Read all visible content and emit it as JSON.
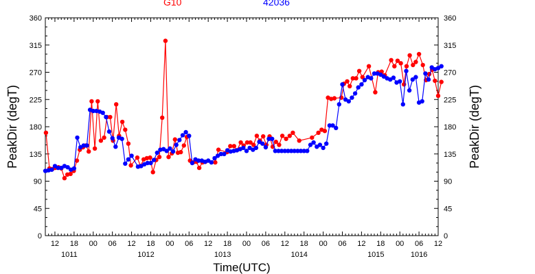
{
  "chart_data": {
    "type": "line",
    "title": "",
    "legend": [
      "G10",
      "42036"
    ],
    "xlabel": "Time(UTC)",
    "ylabel_left": "PeakDir (degT)",
    "ylabel_right": "PeakDir (degT)",
    "ylim": [
      0,
      360
    ],
    "yticks": [
      0,
      45,
      90,
      135,
      180,
      225,
      270,
      315,
      360
    ],
    "xlim_hours": [
      9,
      132
    ],
    "xtick_hour_labels": [
      "12",
      "18",
      "00",
      "06",
      "12",
      "18",
      "00",
      "06",
      "12",
      "18",
      "00",
      "06",
      "12",
      "18",
      "00",
      "06",
      "12",
      "18",
      "00",
      "06",
      "12"
    ],
    "xtick_hours": [
      12,
      18,
      24,
      30,
      36,
      42,
      48,
      54,
      60,
      66,
      72,
      78,
      84,
      90,
      96,
      102,
      108,
      114,
      120,
      126,
      132
    ],
    "day_labels": [
      "1011",
      "1012",
      "1013",
      "1014",
      "1015",
      "1016"
    ],
    "day_label_hours": [
      16.5,
      40.5,
      64.5,
      88.5,
      112.5,
      126
    ],
    "series": [
      {
        "name": "G10",
        "color": "#ff0000",
        "x": [
          9.2,
          10.3,
          11.2,
          12.1,
          13.1,
          14.0,
          15.0,
          15.9,
          16.9,
          17.9,
          18.9,
          19.8,
          20.8,
          21.7,
          22.6,
          23.5,
          24.5,
          25.4,
          26.4,
          27.4,
          28.3,
          29.3,
          30.2,
          31.2,
          32.1,
          33.1,
          34.0,
          35.0,
          35.8,
          37.8,
          38.8,
          39.8,
          40.8,
          41.8,
          42.7,
          43.7,
          44.7,
          45.6,
          46.6,
          47.6,
          48.6,
          49.6,
          50.5,
          51.4,
          52.4,
          53.3,
          54.3,
          55.3,
          56.3,
          57.2,
          58.2,
          59.1,
          62.2,
          63.2,
          65.9,
          66.9,
          68.1,
          69.0,
          70.2,
          71.1,
          72.2,
          73.2,
          74.2,
          75.2,
          76.2,
          77.2,
          78.2,
          79.2,
          80.2,
          81.2,
          82.2,
          83.2,
          84.4,
          85.5,
          86.5,
          88.5,
          92.5,
          94.5,
          95.5,
          96.5,
          97.5,
          98.5,
          99.5,
          101.7,
          102.5,
          103.5,
          104.3,
          105.3,
          106.3,
          107.3,
          108.3,
          110.3,
          112.3,
          113.2,
          114.3,
          115.3,
          117.3,
          118.3,
          119.3,
          120.3,
          121.3,
          122.1,
          123.1,
          124.1,
          125.0,
          126.0,
          127.2,
          128.2,
          129.2,
          130.1,
          131.0,
          132.0,
          133.0
        ],
        "y": [
          170,
          111,
          110,
          112,
          113,
          111,
          95,
          101,
          102,
          107,
          124,
          142,
          146,
          149,
          139,
          222,
          144,
          222,
          157,
          162,
          196,
          196,
          157,
          217,
          165,
          188,
          175,
          152,
          116,
          129,
          115,
          126,
          128,
          129,
          105,
          125,
          130,
          195,
          322,
          130,
          136,
          159,
          137,
          138,
          149,
          163,
          124,
          121,
          122,
          112,
          121,
          122,
          121,
          142,
          138,
          148,
          148,
          141,
          154,
          149,
          154,
          154,
          150,
          165,
          157,
          164,
          150,
          164,
          147,
          155,
          150,
          165,
          160,
          165,
          170,
          157,
          162,
          170,
          175,
          173,
          228,
          226,
          227,
          228,
          251,
          255,
          247,
          260,
          260,
          272,
          262,
          280,
          237,
          270,
          271,
          265,
          290,
          280,
          289,
          285,
          250,
          280,
          298,
          282,
          287,
          300,
          282,
          257,
          267,
          274,
          256,
          231,
          254
        ],
        "y_note": "approx"
      },
      {
        "name": "42036",
        "color": "#0000ff",
        "x": [
          9.0,
          10.0,
          11.0,
          12.0,
          13.0,
          14.0,
          15.0,
          16.0,
          17.0,
          18.0,
          19.0,
          20.0,
          21.0,
          22.0,
          23.0,
          24.0,
          25.0,
          26.0,
          27.0,
          28.0,
          29.0,
          30.0,
          31.0,
          32.0,
          33.0,
          34.0,
          35.0,
          36.0,
          38.0,
          39.0,
          40.0,
          41.0,
          42.0,
          43.0,
          44.0,
          45.0,
          46.0,
          47.0,
          48.0,
          49.0,
          50.0,
          51.0,
          52.0,
          53.0,
          54.0,
          55.0,
          56.0,
          57.0,
          58.0,
          59.0,
          60.0,
          61.0,
          62.0,
          63.0,
          64.0,
          65.0,
          66.0,
          67.0,
          68.0,
          69.0,
          70.0,
          71.0,
          72.0,
          73.0,
          74.0,
          75.0,
          76.0,
          77.0,
          78.0,
          79.0,
          80.0,
          81.0,
          82.0,
          83.0,
          84.0,
          85.0,
          86.0,
          87.0,
          88.0,
          89.0,
          90.0,
          91.0,
          92.0,
          93.0,
          94.0,
          95.0,
          96.0,
          97.0,
          98.0,
          99.0,
          100.0,
          101.0,
          102.0,
          103.0,
          104.0,
          105.0,
          106.0,
          107.0,
          108.0,
          109.0,
          110.0,
          111.0,
          112.0,
          113.0,
          114.0,
          115.0,
          116.0,
          117.0,
          118.0,
          119.0,
          120.0,
          121.0,
          122.0,
          123.0,
          124.0,
          125.0,
          126.0,
          127.0,
          128.0,
          129.0,
          130.0,
          131.0,
          132.0,
          133.0
        ],
        "y": [
          107,
          108,
          109,
          115,
          112,
          112,
          115,
          113,
          109,
          111,
          162,
          146,
          149,
          149,
          208,
          206,
          206,
          205,
          203,
          196,
          172,
          161,
          147,
          162,
          160,
          119,
          126,
          132,
          114,
          115,
          118,
          120,
          120,
          125,
          137,
          142,
          143,
          140,
          144,
          139,
          150,
          158,
          166,
          171,
          165,
          120,
          126,
          124,
          124,
          122,
          124,
          121,
          128,
          132,
          135,
          135,
          141,
          139,
          140,
          141,
          143,
          145,
          140,
          145,
          142,
          145,
          155,
          152,
          146,
          160,
          160,
          140,
          140,
          140,
          140,
          140,
          140,
          140,
          140,
          140,
          140,
          140,
          150,
          154,
          147,
          150,
          145,
          152,
          182,
          182,
          178,
          217,
          250,
          225,
          222,
          228,
          235,
          245,
          250,
          257,
          262,
          260,
          268,
          268,
          266,
          263,
          260,
          258,
          261,
          253,
          255,
          217,
          272,
          240,
          258,
          262,
          220,
          222,
          268,
          258,
          278,
          275,
          277,
          280
        ],
        "y_note": "approx"
      }
    ]
  }
}
